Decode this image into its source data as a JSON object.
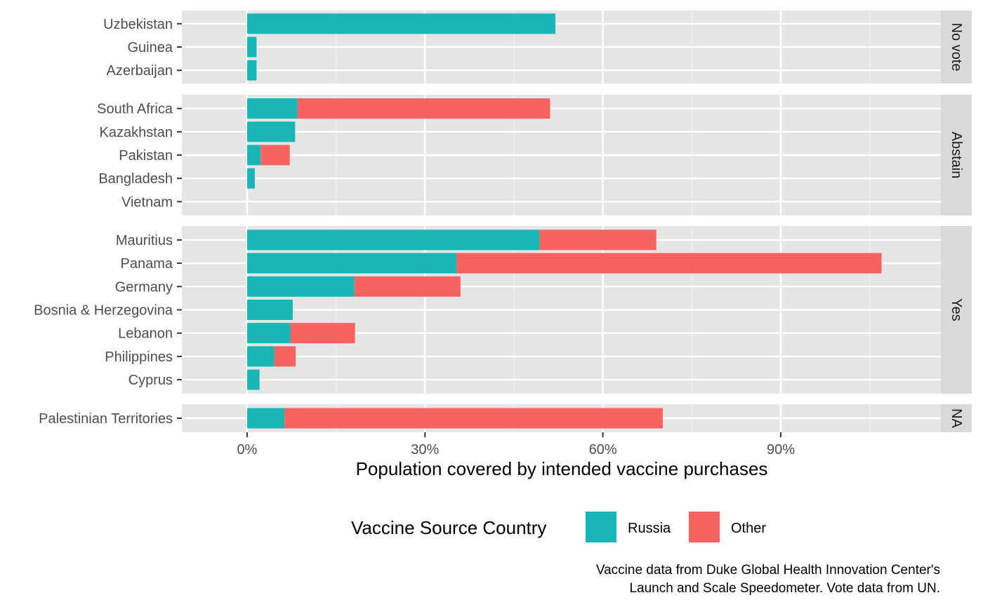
{
  "chart_data": {
    "type": "bar",
    "orientation": "horizontal",
    "stacked": true,
    "xlabel": "Population covered by intended vaccine purchases",
    "x_ticks": [
      "0%",
      "30%",
      "60%",
      "90%"
    ],
    "x_tick_values": [
      0,
      30,
      60,
      90
    ],
    "xlim": [
      -11,
      117
    ],
    "grid": true,
    "legend": {
      "title": "Vaccine Source Country",
      "position": "bottom",
      "entries": [
        {
          "name": "Russia",
          "color": "#19b5b7"
        },
        {
          "name": "Other",
          "color": "#f5625f"
        }
      ]
    },
    "facets": [
      {
        "label": "No vote",
        "categories": [
          "Uzbekistan",
          "Guinea",
          "Azerbaijan"
        ],
        "series": [
          {
            "name": "Russia",
            "values": [
              52,
              1.6,
              1.6
            ]
          },
          {
            "name": "Other",
            "values": [
              0,
              0,
              0
            ]
          }
        ]
      },
      {
        "label": "Abstain",
        "categories": [
          "South Africa",
          "Kazakhstan",
          "Pakistan",
          "Bangladesh",
          "Vietnam"
        ],
        "series": [
          {
            "name": "Russia",
            "values": [
              8.5,
              8.1,
              2.3,
              1.3,
              0
            ]
          },
          {
            "name": "Other",
            "values": [
              42.6,
              0,
              4.9,
              0,
              0
            ]
          }
        ]
      },
      {
        "label": "Yes",
        "categories": [
          "Mauritius",
          "Panama",
          "Germany",
          "Bosnia & Herzegovina",
          "Lebanon",
          "Philippines",
          "Cyprus"
        ],
        "series": [
          {
            "name": "Russia",
            "values": [
              49.3,
              35.3,
              18.1,
              7.7,
              7.3,
              4.6,
              2.1
            ]
          },
          {
            "name": "Other",
            "values": [
              19.7,
              71.7,
              17.9,
              0,
              10.9,
              3.6,
              0
            ]
          }
        ]
      },
      {
        "label": "NA",
        "categories": [
          "Palestinian Territories"
        ],
        "series": [
          {
            "name": "Russia",
            "values": [
              6.3
            ]
          },
          {
            "name": "Other",
            "values": [
              63.8
            ]
          }
        ]
      }
    ],
    "caption": [
      "Vaccine data from Duke Global Health Innovation Center's",
      "Launch and Scale Speedometer. Vote data from UN."
    ]
  }
}
